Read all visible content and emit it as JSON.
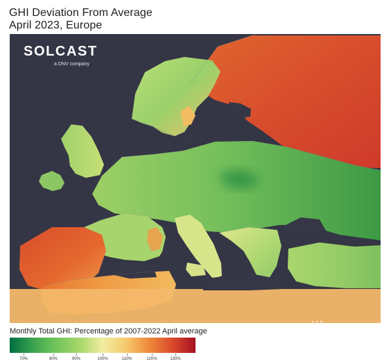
{
  "header": {
    "title_line1": "GHI Deviation From Average",
    "title_line2": "April 2023, Europe"
  },
  "logo": {
    "word": "SOLCAST",
    "subtitle": "a DNV company",
    "icon": "sun-icon"
  },
  "legend": {
    "caption": "Monthly Total GHI: Percentage of 2007-2022 April average",
    "ticks": [
      {
        "label": "70%"
      },
      {
        "label": "80%"
      },
      {
        "label": "90%"
      },
      {
        "label": "100%"
      },
      {
        "label": "110%"
      },
      {
        "label": "120%"
      },
      {
        "label": "130%"
      }
    ],
    "colors": [
      "#006c3f",
      "#66bf59",
      "#f1eda1",
      "#ee8a3b",
      "#a50f22"
    ]
  },
  "map": {
    "water_color": "#343545",
    "region_values_percent": {
      "finland_and_west_russia": 130,
      "scandinavia": 95,
      "central_europe": 85,
      "eastern_europe": 80,
      "iberia": 125,
      "italy": 98,
      "north_africa": 115,
      "ireland_uk": 95,
      "turkey": 90
    }
  }
}
